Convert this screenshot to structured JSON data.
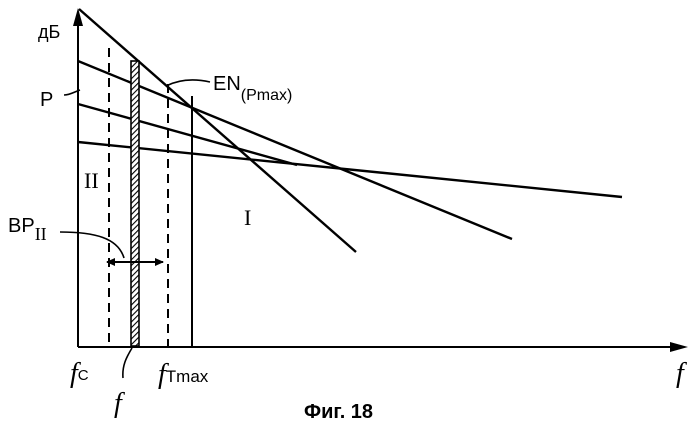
{
  "labels": {
    "y_axis": "дБ",
    "x_axis": "f",
    "curve_p": "P",
    "curve_en_main": "EN",
    "curve_en_sub": "(Pmax)",
    "region_ii": "II",
    "region_i": "I",
    "bp_main": "BP",
    "bp_sub": "II",
    "fc_main": "f",
    "fc_sub": "C",
    "f_below": "f",
    "ftmax_main": "f",
    "ftmax_sub": "Tmax",
    "caption": "Фиг. 18"
  }
}
